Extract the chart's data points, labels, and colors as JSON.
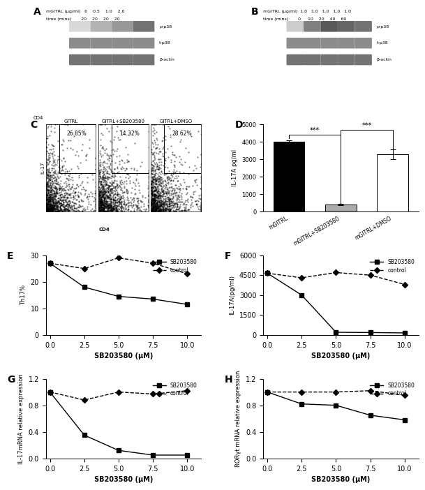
{
  "panel_A": {
    "label": "A",
    "header_line1": "mGITRL (μg/ml)   0    0.5    1.0    2.0",
    "header_line2": "time (mins)       20    20    20    20",
    "bands": [
      "p-p38",
      "t-p38",
      "β-actin"
    ]
  },
  "panel_B": {
    "label": "B",
    "header_line1": "mGITRL (μg/ml)  1.0   1.0   1.0   1.0   1.0",
    "header_line2": "time (mins)       0     10    20    40    60",
    "bands": [
      "p-p38",
      "t-p38",
      "β-actin"
    ]
  },
  "panel_C": {
    "label": "C",
    "conditions": [
      "GITRL",
      "GITRL+SB203580",
      "GITRL+DMSO"
    ],
    "percentages": [
      "26.85%",
      "14.32%",
      "28.62%"
    ],
    "xlabel": "CD4",
    "ylabel": "IL-17"
  },
  "panel_D": {
    "label": "D",
    "categories": [
      "mGITRL",
      "mGITRL+SB203580",
      "mGITRL+DMSO"
    ],
    "values": [
      4000,
      380,
      3300
    ],
    "errors": [
      80,
      40,
      280
    ],
    "bar_colors": [
      "#000000",
      "#aaaaaa",
      "#ffffff"
    ],
    "ylabel": "IL-17A pg/ml",
    "ylim": [
      0,
      5000
    ],
    "yticks": [
      0,
      1000,
      2000,
      3000,
      4000,
      5000
    ],
    "significance": [
      [
        "mGITRL",
        "mGITRL+SB203580",
        "***"
      ],
      [
        "mGITRL+SB203580",
        "mGITRL+DMSO",
        "***"
      ]
    ]
  },
  "panel_E": {
    "label": "E",
    "xlabel": "SB203580 (μM)",
    "ylabel": "Th17%",
    "x": [
      0.0,
      2.5,
      5.0,
      7.5,
      10.0
    ],
    "SB203580": [
      27.0,
      18.0,
      14.5,
      13.5,
      11.5
    ],
    "control": [
      27.0,
      25.0,
      29.0,
      27.0,
      23.0
    ],
    "ylim": [
      0,
      30
    ],
    "yticks": [
      0,
      10,
      20,
      30
    ]
  },
  "panel_F": {
    "label": "F",
    "xlabel": "SB203580 (μM)",
    "ylabel": "IL-17A(pg/ml)",
    "x": [
      0.0,
      2.5,
      5.0,
      7.5,
      10.0
    ],
    "SB203580": [
      4650,
      3000,
      200,
      180,
      150
    ],
    "control": [
      4650,
      4300,
      4700,
      4500,
      3800
    ],
    "ylim": [
      0,
      6000
    ],
    "yticks": [
      0,
      1500,
      3000,
      4500,
      6000
    ]
  },
  "panel_G": {
    "label": "G",
    "xlabel": "SB203580 (μM)",
    "ylabel": "IL-17mRNA relative expression",
    "x": [
      0.0,
      2.5,
      5.0,
      7.5,
      10.0
    ],
    "SB203580": [
      1.0,
      0.35,
      0.12,
      0.05,
      0.05
    ],
    "control": [
      1.0,
      0.88,
      1.0,
      0.97,
      1.02
    ],
    "ylim": [
      0,
      1.2
    ],
    "yticks": [
      0.0,
      0.4,
      0.8,
      1.2
    ]
  },
  "panel_H": {
    "label": "H",
    "xlabel": "SB203580 (μM)",
    "ylabel": "RORγt mRNA relative expression",
    "x": [
      0.0,
      2.5,
      5.0,
      7.5,
      10.0
    ],
    "SB203580": [
      1.0,
      0.82,
      0.8,
      0.65,
      0.58
    ],
    "control": [
      1.0,
      1.0,
      1.0,
      1.02,
      0.95
    ],
    "ylim": [
      0,
      1.2
    ],
    "yticks": [
      0.0,
      0.4,
      0.8,
      1.2
    ]
  },
  "line_color": "#000000",
  "bg_color": "#ffffff"
}
